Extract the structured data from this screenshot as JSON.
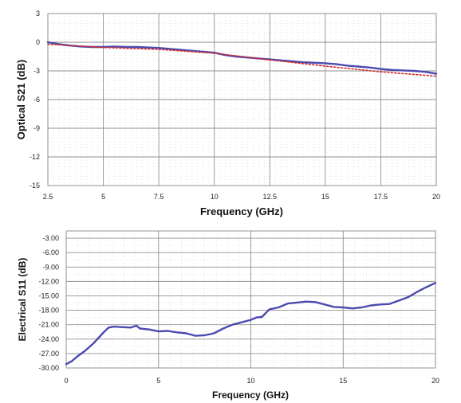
{
  "chart_data": [
    {
      "type": "line",
      "xlabel": "Frequency (GHz)",
      "ylabel": "Optical S21 (dB)",
      "xlim": [
        2.5,
        20
      ],
      "ylim": [
        -15,
        3
      ],
      "x_ticks": [
        "2.5",
        "5",
        "7.5",
        "10",
        "12.5",
        "15",
        "17.5",
        "20"
      ],
      "y_ticks": [
        "3",
        "0",
        "-3",
        "-6",
        "-9",
        "-12",
        "-15"
      ],
      "grid": true,
      "series": [
        {
          "color": "#4a4ab0",
          "style": "solid",
          "x": [
            2.5,
            3,
            3.5,
            4,
            4.5,
            5,
            5.5,
            6,
            6.5,
            7,
            7.5,
            8,
            8.5,
            9,
            9.5,
            10,
            10.5,
            11,
            11.5,
            12,
            12.5,
            13,
            13.5,
            14,
            14.5,
            15,
            15.5,
            16,
            16.5,
            17,
            17.5,
            18,
            18.5,
            19,
            19.5,
            20
          ],
          "y": [
            0.0,
            -0.2,
            -0.35,
            -0.45,
            -0.5,
            -0.5,
            -0.45,
            -0.5,
            -0.5,
            -0.55,
            -0.6,
            -0.7,
            -0.8,
            -0.9,
            -1.0,
            -1.1,
            -1.35,
            -1.5,
            -1.6,
            -1.7,
            -1.8,
            -1.9,
            -2.0,
            -2.1,
            -2.15,
            -2.2,
            -2.3,
            -2.45,
            -2.55,
            -2.65,
            -2.8,
            -2.9,
            -2.95,
            -3.0,
            -3.1,
            -3.3
          ]
        },
        {
          "color": "#d42a2a",
          "style": "dotted",
          "x": [
            2.5,
            5,
            7.5,
            10,
            12.5,
            15,
            17.5,
            20
          ],
          "y": [
            -0.2,
            -0.55,
            -0.75,
            -1.15,
            -1.85,
            -2.5,
            -3.1,
            -3.55
          ]
        }
      ]
    },
    {
      "type": "line",
      "xlabel": "Frequency  (GHz)",
      "ylabel": "Electrical S11 (dB)",
      "xlim": [
        0,
        20
      ],
      "ylim": [
        -30,
        -1.5
      ],
      "x_ticks": [
        "0",
        "5",
        "10",
        "15",
        "20"
      ],
      "y_ticks": [
        "-3.00",
        "-6.00",
        "-9.00",
        "-12.00",
        "-15.00",
        "-18.00",
        "-21.00",
        "-24.00",
        "-27.00",
        "-30.00"
      ],
      "grid": true,
      "series": [
        {
          "color": "#4a4ab0",
          "style": "solid",
          "x": [
            0,
            0.3,
            0.6,
            1,
            1.5,
            2,
            2.3,
            2.6,
            3,
            3.5,
            3.8,
            4,
            4.5,
            5,
            5.5,
            6,
            6.5,
            7,
            7.5,
            8,
            8.5,
            9,
            9.5,
            10,
            10.3,
            10.6,
            11,
            11.5,
            12,
            12.5,
            13,
            13.5,
            14,
            14.5,
            15,
            15.5,
            16,
            16.5,
            17,
            17.5,
            18,
            18.5,
            19,
            19.5,
            20
          ],
          "y": [
            -29.2,
            -28.6,
            -27.6,
            -26.5,
            -24.8,
            -22.7,
            -21.6,
            -21.4,
            -21.5,
            -21.6,
            -21.2,
            -21.8,
            -22.0,
            -22.4,
            -22.3,
            -22.6,
            -22.8,
            -23.3,
            -23.2,
            -22.8,
            -21.8,
            -21.0,
            -20.5,
            -20.0,
            -19.5,
            -19.4,
            -17.8,
            -17.4,
            -16.6,
            -16.4,
            -16.2,
            -16.3,
            -16.8,
            -17.3,
            -17.4,
            -17.6,
            -17.4,
            -17.0,
            -16.8,
            -16.7,
            -16.0,
            -15.3,
            -14.2,
            -13.2,
            -12.3
          ]
        }
      ]
    }
  ]
}
